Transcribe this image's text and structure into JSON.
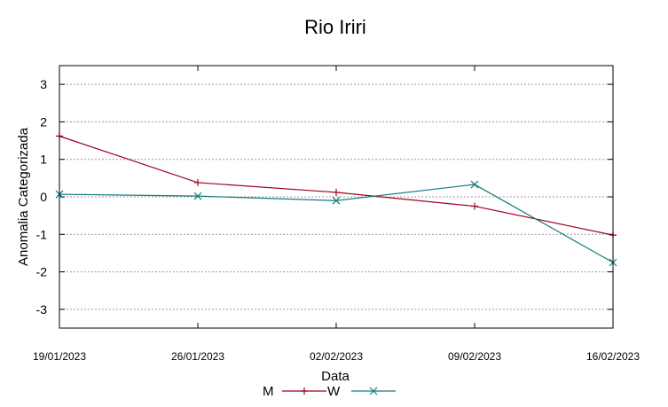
{
  "chart_data": {
    "type": "line",
    "title": "Rio Iriri",
    "xlabel": "Data",
    "ylabel": "Anomalia Categorizada",
    "categories": [
      "19/01/2023",
      "26/01/2023",
      "02/02/2023",
      "09/02/2023",
      "16/02/2023"
    ],
    "ylim": [
      -3.5,
      3.5
    ],
    "yticks": [
      3,
      2,
      1,
      0,
      -1,
      -2,
      -3
    ],
    "ytick_labels": [
      "3",
      "2",
      "1",
      "0",
      "-1",
      "-2",
      "-3"
    ],
    "grid": true,
    "legend_position": "bottom",
    "series": [
      {
        "name": "M",
        "color": "#a0001e",
        "marker": "plus",
        "values": [
          1.62,
          0.38,
          0.12,
          -0.25,
          -1.02
        ]
      },
      {
        "name": "W",
        "color": "#137a7f",
        "marker": "cross",
        "values": [
          0.07,
          0.02,
          -0.1,
          0.33,
          -1.75
        ]
      }
    ]
  }
}
